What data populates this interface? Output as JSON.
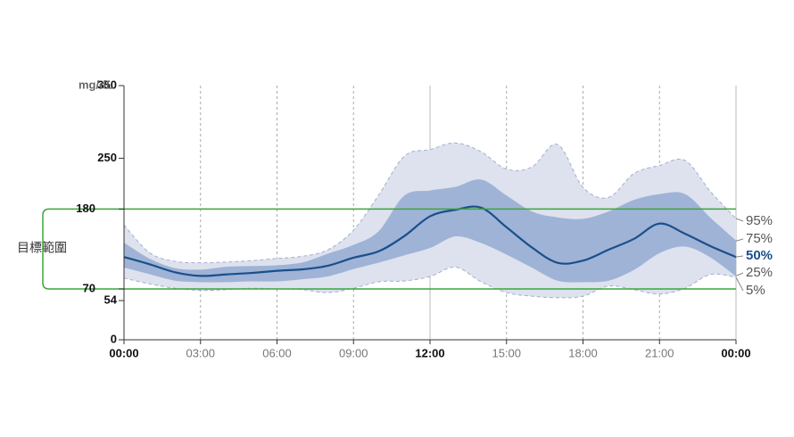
{
  "chart_data": {
    "type": "area",
    "y_unit": "mg/dL",
    "target_label": "目標範圍",
    "target_range": [
      70,
      180
    ],
    "target_color": "#3aa53a",
    "x": [
      0,
      1,
      2,
      3,
      4,
      5,
      6,
      7,
      8,
      9,
      10,
      11,
      12,
      13,
      14,
      15,
      16,
      17,
      18,
      19,
      20,
      21,
      22,
      23,
      24
    ],
    "xlim": [
      0,
      24
    ],
    "xticks": [
      {
        "value": 0,
        "label": "00:00"
      },
      {
        "value": 3,
        "label": "03:00"
      },
      {
        "value": 6,
        "label": "06:00"
      },
      {
        "value": 9,
        "label": "09:00"
      },
      {
        "value": 12,
        "label": "12:00"
      },
      {
        "value": 15,
        "label": "15:00"
      },
      {
        "value": 18,
        "label": "18:00"
      },
      {
        "value": 21,
        "label": "21:00"
      },
      {
        "value": 24,
        "label": "00:00"
      }
    ],
    "ylim": [
      0,
      350
    ],
    "yticks": [
      0,
      54,
      70,
      180,
      250,
      350
    ],
    "series": [
      {
        "name": "95%",
        "color": "#dde2ee",
        "values": [
          158,
          120,
          108,
          106,
          107,
          109,
          112,
          115,
          124,
          151,
          200,
          253,
          262,
          271,
          259,
          235,
          238,
          269,
          210,
          196,
          229,
          240,
          247,
          204,
          167
        ]
      },
      {
        "name": "75%",
        "color": "#9fb3d6",
        "values": [
          133,
          111,
          98,
          96,
          100,
          101,
          102,
          106,
          118,
          130,
          149,
          198,
          205,
          210,
          220,
          198,
          176,
          168,
          166,
          176,
          192,
          200,
          200,
          167,
          136
        ]
      },
      {
        "name": "50%",
        "color": "#1a4f8b",
        "values": [
          114,
          104,
          93,
          88,
          90,
          92,
          95,
          97,
          102,
          113,
          122,
          143,
          170,
          179,
          182,
          155,
          127,
          106,
          109,
          124,
          139,
          160,
          146,
          129,
          114
        ]
      },
      {
        "name": "25%",
        "color": "#9fb3d6",
        "values": [
          100,
          91,
          82,
          80,
          80,
          81,
          81,
          84,
          88,
          98,
          107,
          117,
          127,
          143,
          134,
          118,
          100,
          82,
          80,
          82,
          97,
          120,
          129,
          114,
          88
        ]
      },
      {
        "name": "5%",
        "color": "#dde2ee",
        "values": [
          85,
          77,
          71,
          68,
          69,
          71,
          70,
          69,
          65,
          71,
          80,
          81,
          87,
          100,
          80,
          65,
          60,
          58,
          60,
          74,
          69,
          63,
          71,
          90,
          86
        ]
      }
    ]
  }
}
